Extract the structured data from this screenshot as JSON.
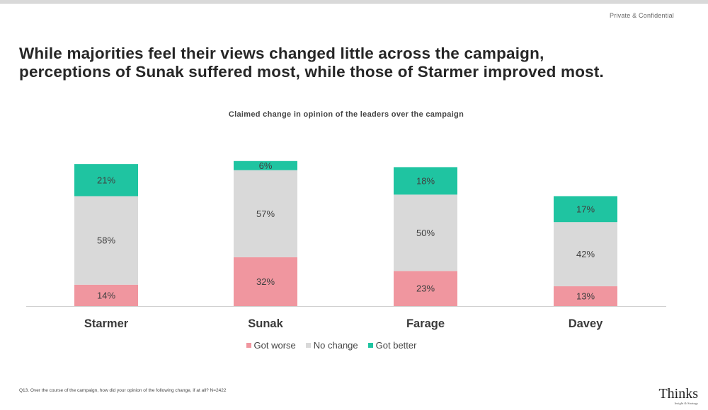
{
  "header": {
    "confidential": "Private & Confidential",
    "headline_line1": "While majorities feel their views changed little across the campaign,",
    "headline_line2": "perceptions of Sunak suffered most, while those of Starmer improved most."
  },
  "chart_data": {
    "type": "bar",
    "stacked": true,
    "title": "Claimed change in opinion of the leaders over the campaign",
    "categories": [
      "Starmer",
      "Sunak",
      "Farage",
      "Davey"
    ],
    "series": [
      {
        "name": "Got worse",
        "values": [
          14,
          32,
          23,
          13
        ],
        "color": "#f0969f"
      },
      {
        "name": "No change",
        "values": [
          58,
          57,
          50,
          42
        ],
        "color": "#d9d9d9"
      },
      {
        "name": "Got better",
        "values": [
          21,
          6,
          18,
          17
        ],
        "color": "#1fc4a1"
      }
    ],
    "value_suffix": "%",
    "xlabel": "",
    "ylabel": "",
    "ylim": [
      0,
      100
    ],
    "grid": false,
    "legend": "bottom"
  },
  "footer": {
    "footnote": "Q13. Over the course of the campaign, how did your opinion of the following change, if at all? N=2422",
    "logo_word": "Thinks",
    "logo_tagline": "Insight & Strategy"
  }
}
